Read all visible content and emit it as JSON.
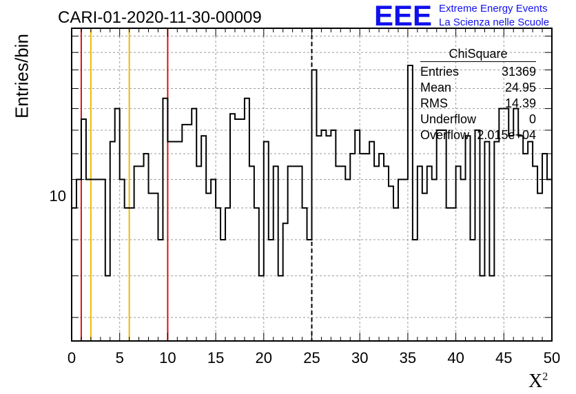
{
  "title": "CARI-01-2020-11-30-00009",
  "logo": {
    "mark": "EEE",
    "line1": "Extreme Energy Events",
    "line2": "La Scienza nelle Scuole"
  },
  "axes": {
    "ylabel": "Entries/bin",
    "xlabel": "X",
    "xlabel_sup": "2",
    "ytick": "10"
  },
  "stats": {
    "title": "ChiSquare",
    "rows": [
      {
        "label": "Entries",
        "value": "31369"
      },
      {
        "label": "Mean",
        "value": "24.95"
      },
      {
        "label": "RMS",
        "value": "14.39"
      },
      {
        "label": "Underflow",
        "value": "0"
      },
      {
        "label": "Overflow",
        "value": "2.015e+04"
      }
    ]
  },
  "colors": {
    "frame": "#000000",
    "grid": "#999999",
    "histogram": "#000000",
    "red_lines": "#dd1111",
    "yellow_lines": "#eebb00",
    "logo": "#1010ee"
  },
  "chart_data": {
    "type": "histogram",
    "title": "CARI-01-2020-11-30-00009",
    "xlabel": "X²",
    "ylabel": "Entries/bin",
    "xlim": [
      0,
      50
    ],
    "yscale": "log",
    "ylim": [
      5.5,
      17.5
    ],
    "grid": true,
    "bin_width": 0.5,
    "values": [
      9,
      10,
      12.5,
      10,
      10,
      10,
      10,
      7,
      11.5,
      13,
      10,
      9,
      9,
      10.5,
      10.5,
      11,
      9.5,
      9.5,
      8,
      13.5,
      11.5,
      11.5,
      11.5,
      12.25,
      12.25,
      13,
      10.5,
      11.75,
      9.5,
      10,
      9,
      8,
      9,
      12.75,
      12.5,
      12.5,
      13.5,
      10.5,
      9,
      7,
      11.5,
      8,
      10.5,
      7,
      8.5,
      10.5,
      10.5,
      10.5,
      9,
      8,
      15,
      11.75,
      12,
      11.75,
      12,
      10.5,
      10.5,
      10,
      11,
      12,
      11,
      11,
      11.5,
      10.5,
      11,
      10.5,
      9.75,
      9,
      10,
      10,
      15.25,
      8,
      10.5,
      9.5,
      10.5,
      10,
      12,
      12,
      9,
      9,
      10.5,
      10,
      11.75,
      8,
      12,
      7,
      11.5,
      7,
      11.5,
      13,
      13,
      11.75,
      13,
      11.75,
      11,
      11.5,
      10.5,
      9.5,
      11,
      10,
      9
    ]
  },
  "markers": {
    "red": [
      1,
      10
    ],
    "yellow": [
      2,
      6
    ],
    "dashed": [
      25
    ]
  }
}
